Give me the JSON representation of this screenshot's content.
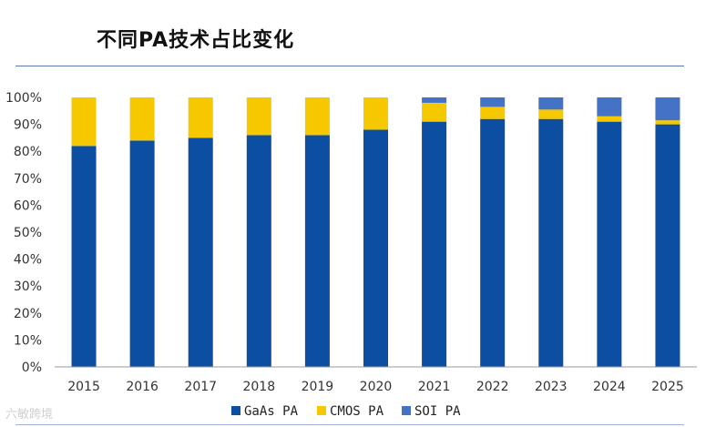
{
  "title": "不同PA技术占比变化",
  "watermark": "六敏跨境",
  "colors": {
    "gaas": "#0b4ea2",
    "cmos": "#f5c800",
    "soi": "#4472c4",
    "axis": "#999999"
  },
  "chart_data": {
    "type": "bar",
    "stacked": true,
    "categories": [
      "2015",
      "2016",
      "2017",
      "2018",
      "2019",
      "2020",
      "2021",
      "2022",
      "2023",
      "2024",
      "2025"
    ],
    "series": [
      {
        "name": "GaAs PA",
        "values": [
          82,
          84,
          85,
          86,
          86,
          88,
          91,
          92,
          92,
          91,
          90
        ]
      },
      {
        "name": "CMOS PA",
        "values": [
          18,
          16,
          15,
          14,
          14,
          12,
          7,
          4.5,
          3.5,
          2,
          1.5
        ]
      },
      {
        "name": "SOI PA",
        "values": [
          0,
          0,
          0,
          0,
          0,
          0,
          2,
          3.5,
          4.5,
          7,
          8.5
        ]
      }
    ],
    "ylim": [
      0,
      100
    ],
    "yticks": [
      "0%",
      "10%",
      "20%",
      "30%",
      "40%",
      "50%",
      "60%",
      "70%",
      "80%",
      "90%",
      "100%"
    ],
    "legend_position": "bottom",
    "grid": false
  }
}
